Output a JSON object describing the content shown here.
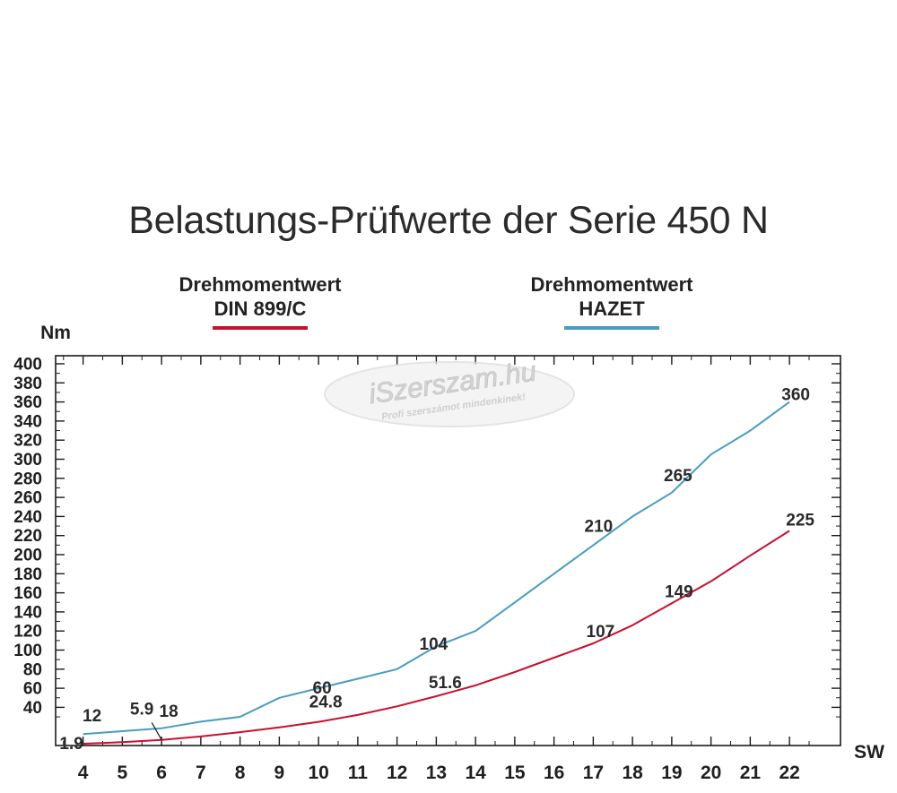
{
  "chart_data": {
    "type": "line",
    "title": "Belastungs-Prüfwerte der Serie 450 N",
    "xlabel": "SW",
    "ylabel": "Nm",
    "x": [
      4,
      5,
      6,
      7,
      8,
      9,
      10,
      11,
      12,
      13,
      14,
      15,
      16,
      17,
      18,
      19,
      20,
      21,
      22
    ],
    "xlim": [
      3.3,
      22.9
    ],
    "ylim": [
      0,
      410
    ],
    "yticks": [
      40,
      60,
      80,
      100,
      120,
      140,
      160,
      180,
      200,
      220,
      240,
      260,
      280,
      300,
      320,
      340,
      360,
      380,
      400
    ],
    "series": [
      {
        "name": "Drehmomentwert DIN 899/C",
        "color": "#c8102e",
        "x": [
          4,
          5,
          6,
          7,
          8,
          9,
          10,
          11,
          12,
          13,
          14,
          15,
          16,
          17,
          18,
          19,
          20,
          21,
          22
        ],
        "values": [
          1.9,
          3.5,
          5.9,
          9.5,
          14,
          19,
          24.8,
          32,
          41,
          51.6,
          63,
          77,
          92,
          107,
          126,
          149,
          172,
          199,
          225
        ]
      },
      {
        "name": "Drehmomentwert HAZET",
        "color": "#4a9cc0",
        "x": [
          4,
          5,
          6,
          7,
          8,
          9,
          10,
          11,
          12,
          13,
          14,
          15,
          16,
          17,
          18,
          19,
          20,
          21,
          22
        ],
        "values": [
          12,
          15,
          18,
          25,
          30,
          50,
          60,
          70,
          80,
          104,
          120,
          150,
          180,
          210,
          240,
          265,
          305,
          330,
          360
        ]
      }
    ],
    "annotations": [
      {
        "text": "1.9",
        "x": 4,
        "y": 1.9,
        "series": 0
      },
      {
        "text": "5.9",
        "x": 6,
        "y": 5.9,
        "series": 0
      },
      {
        "text": "24.8",
        "x": 10,
        "y": 24.8,
        "series": 0
      },
      {
        "text": "51.6",
        "x": 13,
        "y": 51.6,
        "series": 0
      },
      {
        "text": "107",
        "x": 17,
        "y": 107,
        "series": 0
      },
      {
        "text": "149",
        "x": 19,
        "y": 149,
        "series": 0
      },
      {
        "text": "225",
        "x": 22,
        "y": 225,
        "series": 0
      },
      {
        "text": "12",
        "x": 4,
        "y": 12,
        "series": 1
      },
      {
        "text": "18",
        "x": 6,
        "y": 18,
        "series": 1
      },
      {
        "text": "60",
        "x": 10,
        "y": 60,
        "series": 1
      },
      {
        "text": "104",
        "x": 13,
        "y": 104,
        "series": 1
      },
      {
        "text": "210",
        "x": 17,
        "y": 210,
        "series": 1
      },
      {
        "text": "265",
        "x": 19,
        "y": 265,
        "series": 1
      },
      {
        "text": "360",
        "x": 22,
        "y": 360,
        "series": 1
      }
    ],
    "legend": {
      "position": "top",
      "din_line1": "Drehmomentwert",
      "din_line2": "DIN 899/C",
      "hazet_line1": "Drehmomentwert",
      "hazet_line2": "HAZET"
    },
    "grid": false
  },
  "watermark": {
    "brand": "iSzerszam.hu",
    "tagline": "Profi szerszámot mindenkinek!"
  }
}
